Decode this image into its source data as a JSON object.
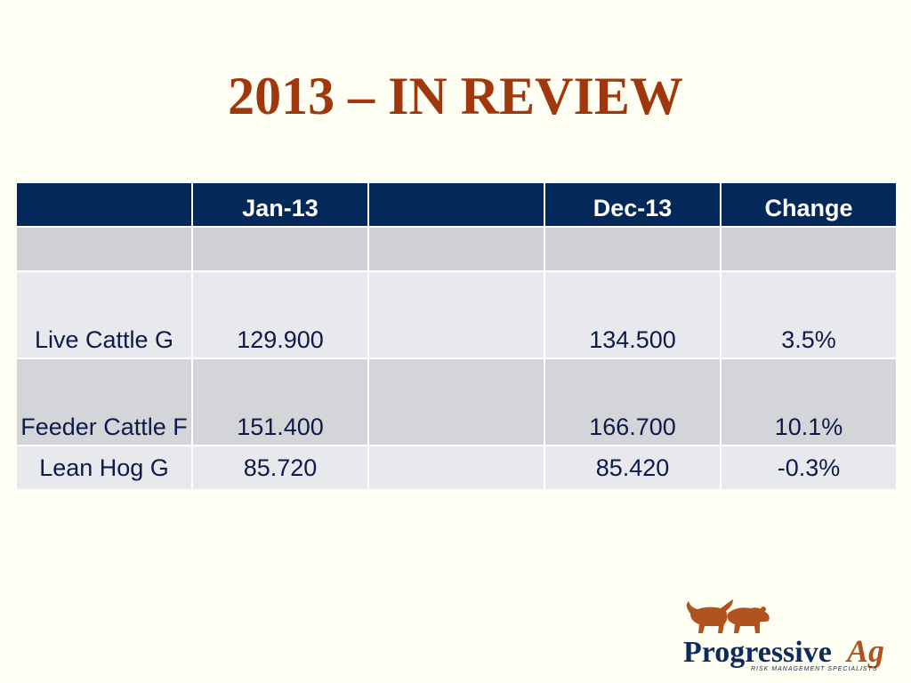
{
  "slide": {
    "title": "2013 – IN REVIEW"
  },
  "table": {
    "headers": [
      "",
      "Jan-13",
      "",
      "Dec-13",
      "Change"
    ],
    "rows": [
      [
        "",
        "",
        "",
        "",
        ""
      ],
      [
        "Live Cattle G",
        "129.900",
        "",
        "134.500",
        "3.5%"
      ],
      [
        "Feeder Cattle F",
        "151.400",
        "",
        "166.700",
        "10.1%"
      ],
      [
        "Lean Hog G",
        "85.720",
        "",
        "85.420",
        "-0.3%"
      ]
    ]
  },
  "logo": {
    "name_main": "Progressive",
    "name_suffix": "Ag",
    "tagline": "RISK MANAGEMENT SPECIALISTS",
    "colors": {
      "navy": "#0d2a5c",
      "rust": "#b0531f"
    }
  }
}
